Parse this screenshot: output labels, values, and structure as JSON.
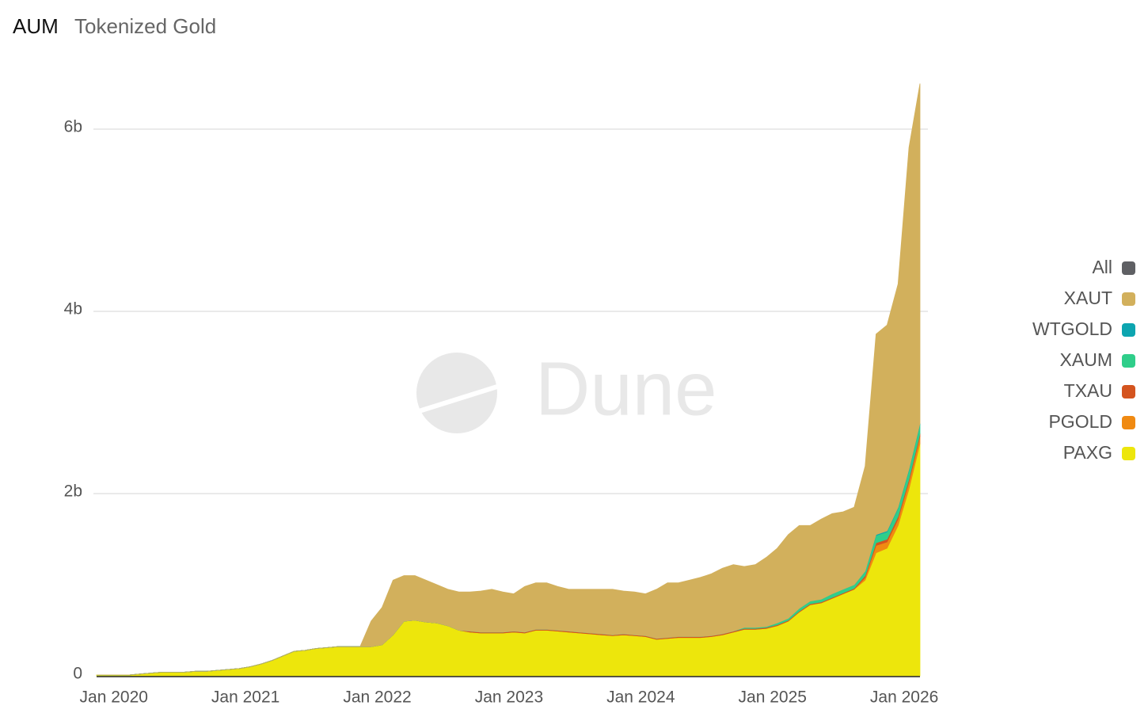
{
  "header": {
    "title": "AUM",
    "subtitle": "Tokenized Gold"
  },
  "watermark": "Dune",
  "chart_data": {
    "type": "stacked_area",
    "x": [
      "2019-11",
      "2019-12",
      "2020-01",
      "2020-02",
      "2020-03",
      "2020-04",
      "2020-05",
      "2020-06",
      "2020-07",
      "2020-08",
      "2020-09",
      "2020-10",
      "2020-11",
      "2020-12",
      "2021-01",
      "2021-02",
      "2021-03",
      "2021-04",
      "2021-05",
      "2021-06",
      "2021-07",
      "2021-08",
      "2021-09",
      "2021-10",
      "2021-11",
      "2021-12",
      "2022-01",
      "2022-02",
      "2022-03",
      "2022-04",
      "2022-05",
      "2022-06",
      "2022-07",
      "2022-08",
      "2022-09",
      "2022-10",
      "2022-11",
      "2022-12",
      "2023-01",
      "2023-02",
      "2023-03",
      "2023-04",
      "2023-05",
      "2023-06",
      "2023-07",
      "2023-08",
      "2023-09",
      "2023-10",
      "2023-11",
      "2023-12",
      "2024-01",
      "2024-02",
      "2024-03",
      "2024-04",
      "2024-05",
      "2024-06",
      "2024-07",
      "2024-08",
      "2024-09",
      "2024-10",
      "2024-11",
      "2024-12",
      "2025-01",
      "2025-02",
      "2025-03",
      "2025-04",
      "2025-05",
      "2025-06",
      "2025-07",
      "2025-08",
      "2025-09",
      "2025-10",
      "2025-11",
      "2025-12",
      "2026-01",
      "2026-02"
    ],
    "xlim": [
      "2019-11",
      "2026-02"
    ],
    "xticks": [
      {
        "value": "2020-01",
        "label": "Jan 2020"
      },
      {
        "value": "2021-01",
        "label": "Jan 2021"
      },
      {
        "value": "2022-01",
        "label": "Jan 2022"
      },
      {
        "value": "2023-01",
        "label": "Jan 2023"
      },
      {
        "value": "2024-01",
        "label": "Jan 2024"
      },
      {
        "value": "2025-01",
        "label": "Jan 2025"
      },
      {
        "value": "2026-01",
        "label": "Jan 2026"
      }
    ],
    "ylim": [
      0,
      6.6
    ],
    "yticks": [
      0,
      {
        "value": 2,
        "label": "2b"
      },
      {
        "value": 4,
        "label": "4b"
      },
      {
        "value": 6,
        "label": "6b"
      }
    ],
    "grid": true,
    "legend_all": {
      "name": "All",
      "color": "#5f6064"
    },
    "series": [
      {
        "name": "PAXG",
        "color": "#ede60c",
        "values": [
          0.01,
          0.01,
          0.01,
          0.01,
          0.02,
          0.03,
          0.04,
          0.04,
          0.04,
          0.05,
          0.05,
          0.06,
          0.07,
          0.08,
          0.1,
          0.13,
          0.17,
          0.22,
          0.27,
          0.28,
          0.3,
          0.31,
          0.32,
          0.32,
          0.32,
          0.32,
          0.34,
          0.45,
          0.6,
          0.61,
          0.59,
          0.58,
          0.55,
          0.5,
          0.48,
          0.47,
          0.47,
          0.47,
          0.48,
          0.47,
          0.5,
          0.5,
          0.49,
          0.48,
          0.47,
          0.46,
          0.45,
          0.44,
          0.45,
          0.44,
          0.43,
          0.4,
          0.41,
          0.42,
          0.42,
          0.42,
          0.43,
          0.45,
          0.48,
          0.51,
          0.51,
          0.52,
          0.55,
          0.6,
          0.7,
          0.78,
          0.8,
          0.85,
          0.9,
          0.95,
          1.05,
          1.35,
          1.4,
          1.65,
          2.05,
          2.55
        ]
      },
      {
        "name": "PGOLD",
        "color": "#f08a12",
        "values": [
          0,
          0,
          0,
          0,
          0,
          0,
          0,
          0,
          0,
          0,
          0,
          0,
          0,
          0,
          0,
          0,
          0,
          0,
          0,
          0,
          0,
          0,
          0,
          0,
          0,
          0,
          0,
          0,
          0,
          0,
          0,
          0,
          0,
          0,
          0,
          0,
          0,
          0,
          0,
          0,
          0,
          0,
          0,
          0,
          0,
          0,
          0,
          0,
          0,
          0,
          0,
          0,
          0,
          0,
          0,
          0,
          0,
          0,
          0,
          0,
          0,
          0,
          0,
          0,
          0,
          0,
          0,
          0,
          0,
          0,
          0.03,
          0.08,
          0.07,
          0.07,
          0.08,
          0.08
        ]
      },
      {
        "name": "TXAU",
        "color": "#d4541f",
        "values": [
          0,
          0,
          0,
          0,
          0,
          0,
          0,
          0,
          0,
          0,
          0,
          0,
          0,
          0,
          0,
          0,
          0,
          0,
          0,
          0,
          0,
          0,
          0,
          0,
          0,
          0,
          0,
          0,
          0,
          0,
          0,
          0,
          0,
          0,
          0.01,
          0.01,
          0.01,
          0.01,
          0.01,
          0.01,
          0.01,
          0.01,
          0.01,
          0.01,
          0.01,
          0.01,
          0.01,
          0.01,
          0.01,
          0.01,
          0.01,
          0.01,
          0.01,
          0.01,
          0.01,
          0.01,
          0.01,
          0.01,
          0.01,
          0.01,
          0.01,
          0.01,
          0.01,
          0.01,
          0.01,
          0.01,
          0.01,
          0.01,
          0.01,
          0.01,
          0.02,
          0.03,
          0.03,
          0.03,
          0.03,
          0.03
        ]
      },
      {
        "name": "XAUM",
        "color": "#2fce8a",
        "values": [
          0,
          0,
          0,
          0,
          0,
          0,
          0,
          0,
          0,
          0,
          0,
          0,
          0,
          0,
          0,
          0,
          0,
          0,
          0,
          0,
          0,
          0,
          0,
          0,
          0,
          0,
          0,
          0,
          0,
          0,
          0,
          0,
          0,
          0,
          0,
          0,
          0,
          0,
          0,
          0,
          0,
          0,
          0,
          0,
          0,
          0,
          0,
          0,
          0,
          0,
          0,
          0,
          0,
          0,
          0,
          0,
          0,
          0,
          0,
          0.01,
          0.01,
          0.01,
          0.02,
          0.02,
          0.03,
          0.03,
          0.03,
          0.04,
          0.04,
          0.04,
          0.05,
          0.08,
          0.08,
          0.09,
          0.1,
          0.1
        ]
      },
      {
        "name": "WTGOLD",
        "color": "#0da5b0",
        "values": [
          0,
          0,
          0,
          0,
          0,
          0,
          0,
          0,
          0,
          0,
          0,
          0,
          0,
          0,
          0,
          0,
          0,
          0,
          0,
          0,
          0,
          0,
          0,
          0,
          0,
          0,
          0,
          0,
          0,
          0,
          0,
          0,
          0,
          0,
          0,
          0,
          0,
          0,
          0,
          0,
          0,
          0,
          0,
          0,
          0,
          0,
          0,
          0,
          0,
          0,
          0,
          0,
          0,
          0,
          0,
          0,
          0,
          0,
          0,
          0,
          0,
          0,
          0,
          0,
          0,
          0,
          0,
          0,
          0,
          0,
          0,
          0.01,
          0.01,
          0.01,
          0.01,
          0.01
        ]
      },
      {
        "name": "XAUT",
        "color": "#d2b05c",
        "values": [
          0,
          0,
          0,
          0,
          0,
          0,
          0,
          0,
          0,
          0,
          0,
          0,
          0,
          0,
          0,
          0,
          0,
          0,
          0,
          0,
          0,
          0,
          0,
          0,
          0,
          0.28,
          0.41,
          0.6,
          0.5,
          0.49,
          0.46,
          0.42,
          0.4,
          0.42,
          0.43,
          0.45,
          0.47,
          0.44,
          0.41,
          0.5,
          0.51,
          0.51,
          0.48,
          0.46,
          0.47,
          0.48,
          0.49,
          0.5,
          0.47,
          0.47,
          0.46,
          0.54,
          0.6,
          0.59,
          0.62,
          0.65,
          0.68,
          0.72,
          0.73,
          0.67,
          0.69,
          0.76,
          0.82,
          0.92,
          0.91,
          0.83,
          0.88,
          0.88,
          0.85,
          0.85,
          1.15,
          2.2,
          2.26,
          2.45,
          3.53,
          3.73
        ]
      }
    ]
  }
}
